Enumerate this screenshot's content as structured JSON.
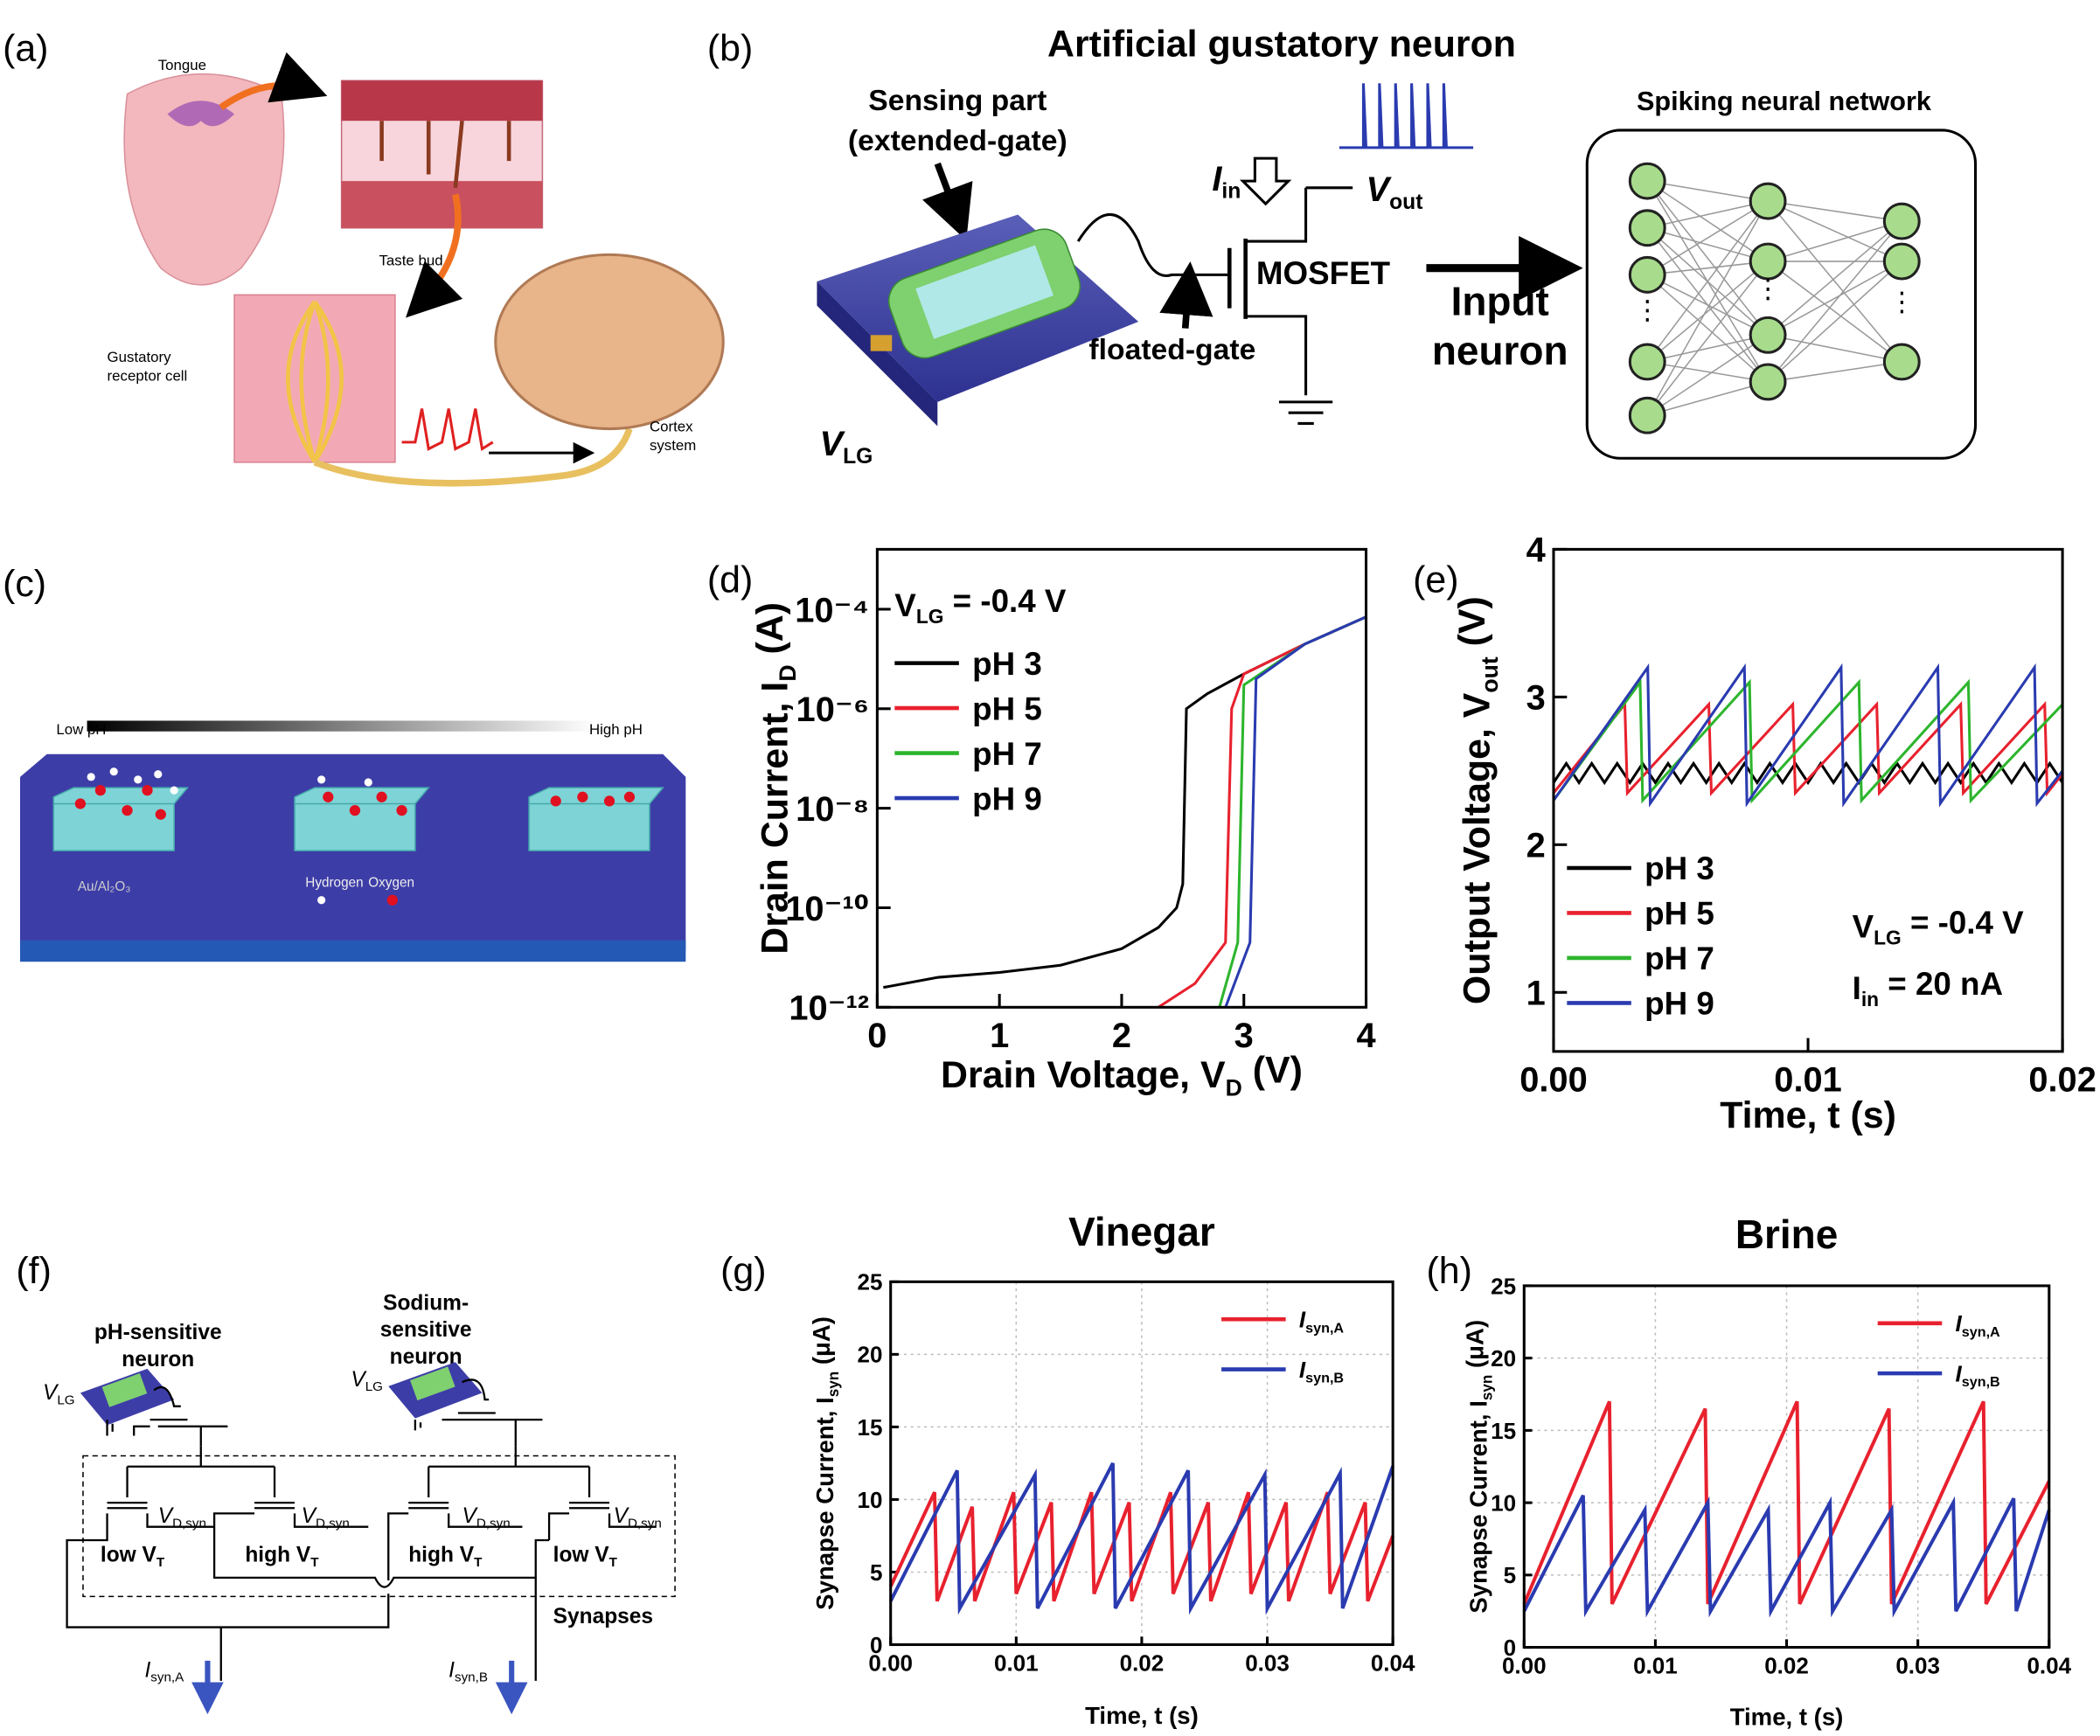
{
  "panel_labels": [
    "(a)",
    "(b)",
    "(c)",
    "(d)",
    "(e)",
    "(f)",
    "(g)",
    "(h)"
  ],
  "panel_a": {
    "tongue": "Tongue",
    "taste_bud": "Taste bud",
    "receptor": [
      "Gustatory",
      "receptor cell"
    ],
    "cortex": [
      "Cortex",
      "system"
    ]
  },
  "panel_b": {
    "title": "Artificial gustatory neuron",
    "sensing": [
      "Sensing part",
      "(extended-gate)"
    ],
    "floated": "floated-gate",
    "mosfet": "MOSFET",
    "input": [
      "Input",
      "neuron"
    ],
    "snn": "Spiking neural network",
    "iin": [
      "I",
      "in"
    ],
    "vout": [
      "V",
      "out"
    ],
    "vlg": [
      "V",
      "LG"
    ]
  },
  "panel_c": {
    "low": "Low pH",
    "high": "High pH",
    "material": "Au/Al₂O₃",
    "hydrogen": "Hydrogen",
    "oxygen": "Oxygen"
  },
  "panel_f": {
    "ph_neuron": [
      "pH-sensitive",
      "neuron"
    ],
    "na_neuron": [
      "Sodium-",
      "sensitive",
      "neuron"
    ],
    "vlg1": [
      "V",
      "LG"
    ],
    "vlg2": [
      "V",
      "LG"
    ],
    "vd": [
      [
        "V",
        "D,syn"
      ],
      [
        "V",
        "D,syn"
      ],
      [
        "V",
        "D,syn"
      ],
      [
        "V",
        "D,syn"
      ]
    ],
    "vt": [
      [
        "low V",
        "T"
      ],
      [
        "high V",
        "T"
      ],
      [
        "high V",
        "T"
      ],
      [
        "low V",
        "T"
      ]
    ],
    "synapses": "Synapses",
    "isa": [
      "I",
      "syn,A"
    ],
    "isb": [
      "I",
      "syn,B"
    ]
  },
  "chart_data": [
    {
      "type": "line",
      "log_y": true,
      "grid": false,
      "legend": "upper left",
      "xlabel": [
        "Drain Voltage, V",
        "D",
        " (V)"
      ],
      "ylabel": [
        "Drain Current, I",
        "D",
        " (A)"
      ],
      "annotations": [
        [
          "V",
          "LG",
          " = -0.4 V"
        ]
      ],
      "xlim": [
        0,
        4
      ],
      "ylim": [
        1e-12,
        0.0016
      ],
      "xticks": [
        0,
        1,
        2,
        3,
        4
      ],
      "yticks": [
        {
          "value": 1e-12,
          "label": "10⁻¹²"
        },
        {
          "value": 1e-10,
          "label": "10⁻¹⁰"
        },
        {
          "value": 1e-08,
          "label": "10⁻⁸"
        },
        {
          "value": 1e-06,
          "label": "10⁻⁶"
        },
        {
          "value": 0.0001,
          "label": "10⁻⁴"
        }
      ],
      "series": [
        {
          "name": "pH 3",
          "color": "#000000",
          "x": [
            0.05,
            0.5,
            1,
            1.5,
            2,
            2.3,
            2.45,
            2.5,
            2.53,
            2.7,
            3,
            3.5,
            4
          ],
          "values": [
            2.5e-12,
            4e-12,
            5e-12,
            7e-12,
            1.5e-11,
            4e-11,
            1e-10,
            3e-10,
            1e-06,
            2e-06,
            5e-06,
            2e-05,
            7e-05
          ]
        },
        {
          "name": "pH 5",
          "color": "#e8212e",
          "x": [
            2.3,
            2.6,
            2.85,
            2.9,
            3,
            3.5,
            4
          ],
          "values": [
            1e-12,
            3e-12,
            2e-11,
            1e-06,
            5e-06,
            2e-05,
            7e-05
          ]
        },
        {
          "name": "pH 7",
          "color": "#2db52d",
          "x": [
            2.8,
            2.95,
            3,
            3.5,
            4
          ],
          "values": [
            1e-12,
            2e-11,
            3e-06,
            2e-05,
            7e-05
          ]
        },
        {
          "name": "pH 9",
          "color": "#2a3bb0",
          "x": [
            2.85,
            3.05,
            3.1,
            3.5,
            4
          ],
          "values": [
            1e-12,
            2e-11,
            4e-06,
            2e-05,
            7e-05
          ]
        }
      ]
    },
    {
      "type": "line",
      "log_y": false,
      "grid": false,
      "legend": "lower left",
      "xlabel": [
        "Time, t (s)"
      ],
      "ylabel": [
        "Output Voltage, V",
        "out",
        " (V)"
      ],
      "annotations": [
        [
          "V",
          "LG",
          " = -0.4 V"
        ],
        [
          "I",
          "in",
          " = 20 nA"
        ]
      ],
      "xlim": [
        0,
        0.02
      ],
      "ylim": [
        0.6,
        4
      ],
      "xticks": [
        {
          "value": 0,
          "label": "0.00"
        },
        0.01,
        0.02
      ],
      "yticks": [
        1,
        2,
        3,
        4
      ],
      "series": [
        {
          "name": "pH 3",
          "color": "#000000",
          "x": [
            0,
            0.0005,
            0.001,
            0.0015,
            0.002,
            0.0025,
            0.003,
            0.0035,
            0.004,
            0.0045,
            0.005,
            0.0055,
            0.006,
            0.0065,
            0.007,
            0.0075,
            0.008,
            0.0085,
            0.009,
            0.0095,
            0.01,
            0.0105,
            0.011,
            0.0115,
            0.012,
            0.0125,
            0.013,
            0.0135,
            0.014,
            0.0145,
            0.015,
            0.0155,
            0.016,
            0.0165,
            0.017,
            0.0175,
            0.018,
            0.0185,
            0.019,
            0.0195,
            0.02
          ],
          "values": [
            2.42,
            2.55,
            2.42,
            2.55,
            2.42,
            2.55,
            2.42,
            2.55,
            2.42,
            2.55,
            2.42,
            2.55,
            2.42,
            2.55,
            2.42,
            2.55,
            2.42,
            2.55,
            2.42,
            2.55,
            2.42,
            2.55,
            2.42,
            2.55,
            2.42,
            2.55,
            2.42,
            2.55,
            2.42,
            2.55,
            2.42,
            2.55,
            2.42,
            2.55,
            2.42,
            2.55,
            2.42,
            2.55,
            2.42,
            2.55,
            2.42
          ]
        },
        {
          "name": "pH 5",
          "color": "#e8212e",
          "x": [
            0,
            0.0028,
            0.0029,
            0.0061,
            0.0062,
            0.0094,
            0.0095,
            0.0127,
            0.0128,
            0.016,
            0.0161,
            0.0193,
            0.0194,
            0.02
          ],
          "values": [
            2.35,
            2.95,
            2.35,
            2.95,
            2.35,
            2.95,
            2.35,
            2.95,
            2.35,
            2.95,
            2.35,
            2.95,
            2.35,
            2.48
          ]
        },
        {
          "name": "pH 7",
          "color": "#2db52d",
          "x": [
            0,
            0.0034,
            0.0035,
            0.0077,
            0.0078,
            0.012,
            0.0121,
            0.0163,
            0.0164,
            0.02
          ],
          "values": [
            2.3,
            3.1,
            2.3,
            3.1,
            2.3,
            3.1,
            2.3,
            3.1,
            2.3,
            2.95
          ]
        },
        {
          "name": "pH 9",
          "color": "#2a3bb0",
          "x": [
            0,
            0.0037,
            0.0038,
            0.0075,
            0.0076,
            0.0113,
            0.0114,
            0.0151,
            0.0152,
            0.0189,
            0.019,
            0.02
          ],
          "values": [
            2.3,
            3.2,
            2.28,
            3.2,
            2.28,
            3.2,
            2.28,
            3.2,
            2.28,
            3.2,
            2.28,
            2.5
          ]
        }
      ]
    },
    {
      "type": "line",
      "log_y": false,
      "grid": true,
      "legend": "upper right",
      "title": "Vinegar",
      "xlabel": [
        "Time, t (s)"
      ],
      "ylabel": [
        "Synapse Current, I",
        "syn",
        " (μA)"
      ],
      "xlim": [
        0,
        0.04
      ],
      "ylim": [
        0,
        25
      ],
      "xticks": [
        {
          "value": 0,
          "label": "0.00"
        },
        0.01,
        0.02,
        0.03,
        0.04
      ],
      "yticks": [
        0,
        5,
        10,
        15,
        20,
        25
      ],
      "series": [
        {
          "name": [
            "I",
            "syn,A"
          ],
          "color": "#e8212e",
          "x": [
            0,
            0.0035,
            0.0037,
            0.0065,
            0.0067,
            0.0098,
            0.01,
            0.0128,
            0.013,
            0.016,
            0.0162,
            0.019,
            0.0192,
            0.0223,
            0.0225,
            0.0253,
            0.0255,
            0.0285,
            0.0287,
            0.0315,
            0.0317,
            0.0348,
            0.035,
            0.0378,
            0.038,
            0.04
          ],
          "values": [
            4,
            10.5,
            3,
            9.5,
            3,
            10.5,
            3.5,
            9.8,
            3,
            10.5,
            3.5,
            9.8,
            3,
            10.5,
            3.5,
            9.8,
            3,
            10.5,
            3.5,
            9.8,
            3,
            10.5,
            3.5,
            9.8,
            3,
            7.5
          ]
        },
        {
          "name": [
            "I",
            "syn,B"
          ],
          "color": "#2a3bb0",
          "x": [
            0,
            0.0053,
            0.0055,
            0.0115,
            0.0117,
            0.0177,
            0.0179,
            0.0237,
            0.0239,
            0.0298,
            0.03,
            0.0358,
            0.036,
            0.04
          ],
          "values": [
            3,
            12,
            2.5,
            11.7,
            2.5,
            12.5,
            2.5,
            12,
            2.5,
            11.7,
            2.5,
            11.8,
            2.5,
            12.3
          ]
        }
      ]
    },
    {
      "type": "line",
      "log_y": false,
      "grid": true,
      "legend": "upper right",
      "title": "Brine",
      "xlabel": [
        "Time, t (s)"
      ],
      "ylabel": [
        "Synapse Current, I",
        "syn",
        " (μA)"
      ],
      "xlim": [
        0,
        0.04
      ],
      "ylim": [
        0,
        25
      ],
      "xticks": [
        {
          "value": 0,
          "label": "0.00"
        },
        0.01,
        0.02,
        0.03,
        0.04
      ],
      "yticks": [
        0,
        5,
        10,
        15,
        20,
        25
      ],
      "series": [
        {
          "name": [
            "I",
            "syn,A"
          ],
          "color": "#e8212e",
          "x": [
            0,
            0.0065,
            0.0067,
            0.0138,
            0.014,
            0.0208,
            0.021,
            0.0278,
            0.028,
            0.035,
            0.0352,
            0.04
          ],
          "values": [
            3,
            17,
            3,
            16.5,
            3,
            17,
            3,
            16.5,
            3,
            17,
            3,
            11.5
          ]
        },
        {
          "name": [
            "I",
            "syn,B"
          ],
          "color": "#2a3bb0",
          "x": [
            0,
            0.0045,
            0.0047,
            0.0092,
            0.0094,
            0.014,
            0.0142,
            0.0186,
            0.0188,
            0.0233,
            0.0235,
            0.028,
            0.0282,
            0.0327,
            0.0329,
            0.0373,
            0.0375,
            0.04
          ],
          "values": [
            2.5,
            10.5,
            2.5,
            9.5,
            2.5,
            10,
            2.5,
            9.5,
            2.5,
            10,
            2.5,
            9.5,
            2.5,
            10,
            2.5,
            10.3,
            2.5,
            9.5
          ]
        }
      ]
    }
  ]
}
